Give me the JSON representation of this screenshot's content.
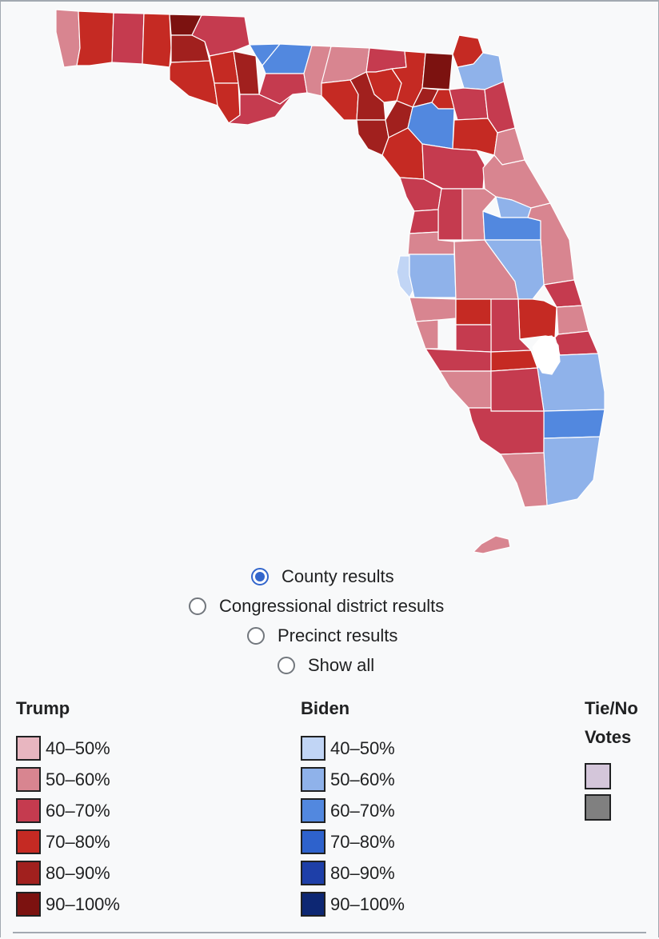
{
  "map": {
    "colors": {
      "r40": "#e8b6c0",
      "r50": "#d88590",
      "r60": "#c53b4f",
      "r70": "#c52a23",
      "r80": "#a1201e",
      "r90": "#7c1210",
      "d40": "#c1d5f5",
      "d50": "#8fb2ea",
      "d60": "#5288df"
    }
  },
  "options": [
    {
      "label": "County results",
      "selected": true
    },
    {
      "label": "Congressional district results",
      "selected": false
    },
    {
      "label": "Precinct results",
      "selected": false
    },
    {
      "label": "Show all",
      "selected": false
    }
  ],
  "legend": {
    "trump": {
      "title": "Trump",
      "items": [
        {
          "label": "40–50%",
          "color": "#e8b6c0"
        },
        {
          "label": "50–60%",
          "color": "#d88590"
        },
        {
          "label": "60–70%",
          "color": "#c53b4f"
        },
        {
          "label": "70–80%",
          "color": "#c52a23"
        },
        {
          "label": "80–90%",
          "color": "#a1201e"
        },
        {
          "label": "90–100%",
          "color": "#7c1210"
        }
      ]
    },
    "biden": {
      "title": "Biden",
      "items": [
        {
          "label": "40–50%",
          "color": "#c1d5f5"
        },
        {
          "label": "50–60%",
          "color": "#8fb2ea"
        },
        {
          "label": "60–70%",
          "color": "#5288df"
        },
        {
          "label": "70–80%",
          "color": "#2e62cc"
        },
        {
          "label": "80–90%",
          "color": "#1e3fa8"
        },
        {
          "label": "90–100%",
          "color": "#0d2773"
        }
      ]
    },
    "tie": {
      "title_line1": "Tie/No",
      "title_line2": "Votes",
      "colors": [
        "#d4c6da",
        "#808080"
      ]
    }
  }
}
